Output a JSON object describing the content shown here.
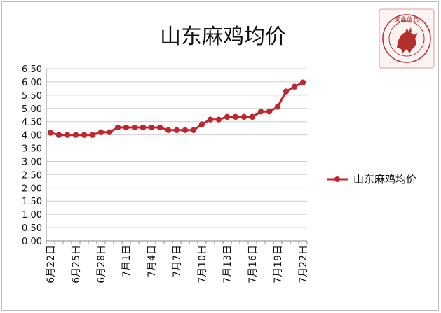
{
  "chart_data": {
    "type": "line",
    "title": "山东麻鸡均价",
    "xlabel": "",
    "ylabel": "",
    "ylim": [
      0,
      6.5
    ],
    "yticks": [
      "0.00",
      "0.50",
      "1.00",
      "1.50",
      "2.00",
      "2.50",
      "3.00",
      "3.50",
      "4.00",
      "4.50",
      "5.00",
      "5.50",
      "6.00",
      "6.50"
    ],
    "x_tick_labels": [
      "6月22日",
      "6月25日",
      "6月28日",
      "7月1日",
      "7月4日",
      "7月7日",
      "7月10日",
      "7月13日",
      "7月16日",
      "7月19日",
      "7月22日"
    ],
    "grid": "horizontal",
    "legend_position": "right",
    "series": [
      {
        "name": "山东麻鸡均价",
        "color": "#c0262d",
        "values": [
          4.08,
          4.0,
          4.0,
          4.0,
          4.0,
          4.0,
          4.1,
          4.1,
          4.28,
          4.28,
          4.28,
          4.28,
          4.28,
          4.28,
          4.18,
          4.18,
          4.18,
          4.18,
          4.4,
          4.58,
          4.58,
          4.68,
          4.68,
          4.68,
          4.68,
          4.88,
          4.88,
          5.06,
          5.64,
          5.82,
          5.98
        ]
      }
    ]
  },
  "seal": {
    "text": "家禽信息",
    "subtext": "POULTRY INFORMATION BULLETIN",
    "color": "#b3312d"
  }
}
